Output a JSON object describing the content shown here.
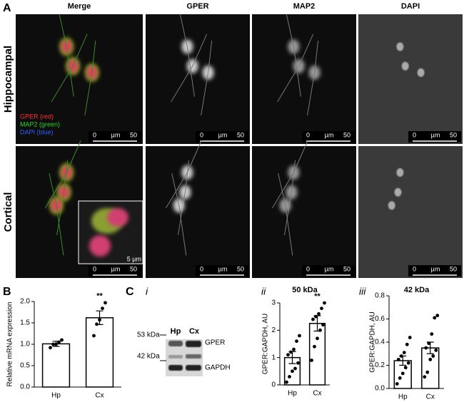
{
  "panel_a": {
    "label": "A",
    "columns": [
      "Merge",
      "GPER",
      "MAP2",
      "DAPI"
    ],
    "rows": [
      "Hippocampal",
      "Cortical"
    ],
    "legend": [
      "GPER (red)",
      "MAP2 (green)",
      "DAPI (blue)"
    ],
    "scale_bar": {
      "start": "0",
      "unit": "µm",
      "end": "50"
    },
    "inset_scale": "5 µm"
  },
  "blot": {
    "panel_label": "C",
    "sublabel": "i",
    "lanes": [
      "Hp",
      "Cx"
    ],
    "markers": [
      "53 kDa",
      "42 kDa"
    ],
    "bands": [
      "GPER",
      "GAPDH"
    ]
  },
  "chart_data": [
    {
      "type": "bar",
      "panel_label": "B",
      "ylabel": "Relative mRNA expression",
      "categories": [
        "Hp",
        "Cx"
      ],
      "values": [
        1.01,
        1.62
      ],
      "errors": [
        0.06,
        0.16
      ],
      "points": [
        [
          0.92,
          1.0,
          1.0,
          1.05,
          1.1
        ],
        [
          1.2,
          1.47,
          1.57,
          1.84,
          1.97
        ]
      ],
      "significance": [
        null,
        "**"
      ],
      "color": "#ffffff",
      "edge_color": "#000000",
      "ylim": [
        0,
        2
      ],
      "yticks": [
        {
          "value": 0,
          "label": "0.0"
        },
        {
          "value": 0.5,
          "label": "0.5"
        },
        {
          "value": 1,
          "label": "1.0"
        },
        {
          "value": 1.5,
          "label": "1.5"
        },
        {
          "value": 2,
          "label": "2.0"
        }
      ]
    },
    {
      "type": "bar",
      "sublabel": "ii",
      "title": "50 kDa",
      "ylabel": "GPER:GAPDH, AU",
      "categories": [
        "Hp",
        "Cx"
      ],
      "values": [
        1.0,
        2.25
      ],
      "errors": [
        0.22,
        0.28
      ],
      "points": [
        [
          0.1,
          0.3,
          0.5,
          0.6,
          0.8,
          1.1,
          1.2,
          1.3,
          1.6,
          1.8
        ],
        [
          0.9,
          1.4,
          1.7,
          2.0,
          2.2,
          2.4,
          2.5,
          2.6,
          2.8,
          3.0
        ]
      ],
      "significance": [
        null,
        "**"
      ],
      "color": "#ffffff",
      "edge_color": "#000000",
      "ylim": [
        0,
        3
      ],
      "yticks": [
        0,
        1,
        2,
        3
      ]
    },
    {
      "type": "bar",
      "sublabel": "iii",
      "title": "42 kDa",
      "ylabel": "GPER:GAPDH, AU",
      "categories": [
        "Hp",
        "Cx"
      ],
      "values": [
        0.24,
        0.35
      ],
      "errors": [
        0.04,
        0.05
      ],
      "points": [
        [
          0.04,
          0.09,
          0.13,
          0.18,
          0.22,
          0.25,
          0.28,
          0.31,
          0.38,
          0.44
        ],
        [
          0.1,
          0.14,
          0.25,
          0.28,
          0.33,
          0.35,
          0.39,
          0.47,
          0.61,
          0.63
        ]
      ],
      "significance": [
        null,
        null
      ],
      "color": "#ffffff",
      "edge_color": "#000000",
      "ylim": [
        0,
        0.8
      ],
      "yticks": [
        {
          "value": 0,
          "label": "0.0"
        },
        {
          "value": 0.2,
          "label": "0.2"
        },
        {
          "value": 0.4,
          "label": "0.4"
        },
        {
          "value": 0.6,
          "label": "0.6"
        },
        {
          "value": 0.8,
          "label": "0.8"
        }
      ]
    }
  ]
}
